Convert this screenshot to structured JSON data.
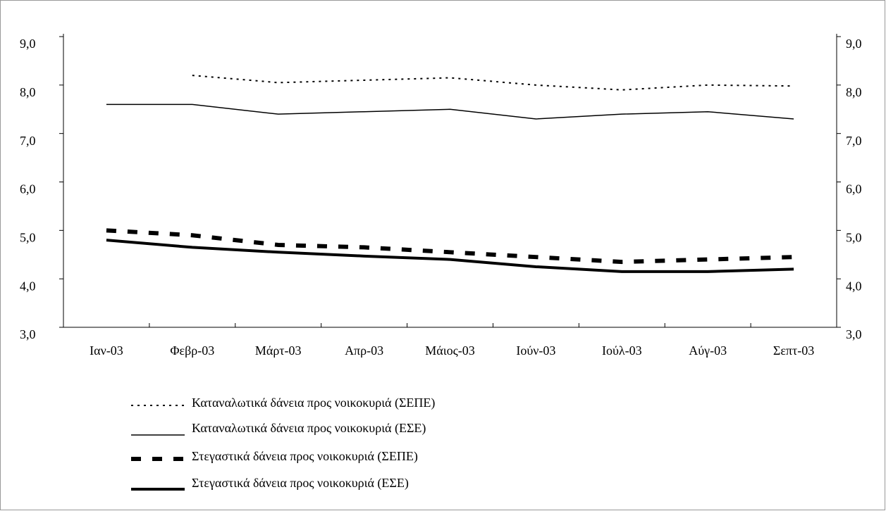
{
  "chart_data": {
    "type": "line",
    "categories": [
      "Ιαν-03",
      "Φεβρ-03",
      "Μάρτ-03",
      "Απρ-03",
      "Μάιος-03",
      "Ιούν-03",
      "Ιούλ-03",
      "Αύγ-03",
      "Σεπτ-03"
    ],
    "series": [
      {
        "name": "Καταναλωτικά δάνεια προς νοικοκυριά (ΣΕΠΕ)",
        "color": "#000000",
        "values": [
          null,
          8.2,
          8.05,
          8.1,
          8.15,
          8.0,
          7.9,
          8.0,
          7.98
        ]
      },
      {
        "name": "Καταναλωτικά δάνεια προς νοικοκυριά (ΕΣΕ)",
        "color": "#000000",
        "values": [
          7.6,
          7.6,
          7.4,
          7.45,
          7.5,
          7.3,
          7.4,
          7.45,
          7.3
        ]
      },
      {
        "name": "Στεγαστικά δάνεια προς νοικοκυριά (ΣΕΠΕ)",
        "color": "#000000",
        "values": [
          5.0,
          4.9,
          4.7,
          4.65,
          4.55,
          4.45,
          4.35,
          4.4,
          4.45
        ]
      },
      {
        "name": "Στεγαστικά δάνεια προς νοικοκυριά (ΕΣΕ)",
        "color": "#000000",
        "values": [
          4.8,
          4.65,
          4.55,
          4.47,
          4.4,
          4.25,
          4.15,
          4.15,
          4.2
        ]
      }
    ],
    "ylim": [
      3,
      9
    ],
    "yticks": [
      {
        "value": 3,
        "label": "3,0"
      },
      {
        "value": 4,
        "label": "4,0"
      },
      {
        "value": 5,
        "label": "5,0"
      },
      {
        "value": 6,
        "label": "6,0"
      },
      {
        "value": 7,
        "label": "7,0"
      },
      {
        "value": 8,
        "label": "8,0"
      },
      {
        "value": 9,
        "label": "9,0"
      }
    ],
    "y2lim": [
      3,
      9
    ],
    "y2ticks": [
      {
        "value": 3,
        "label": "3,0"
      },
      {
        "value": 4,
        "label": "4,0"
      },
      {
        "value": 5,
        "label": "5,0"
      },
      {
        "value": 6,
        "label": "6,0"
      },
      {
        "value": 7,
        "label": "7,0"
      },
      {
        "value": 8,
        "label": "8,0"
      },
      {
        "value": 9,
        "label": "9,0"
      }
    ],
    "grid": false,
    "legend": "bottom-left"
  }
}
